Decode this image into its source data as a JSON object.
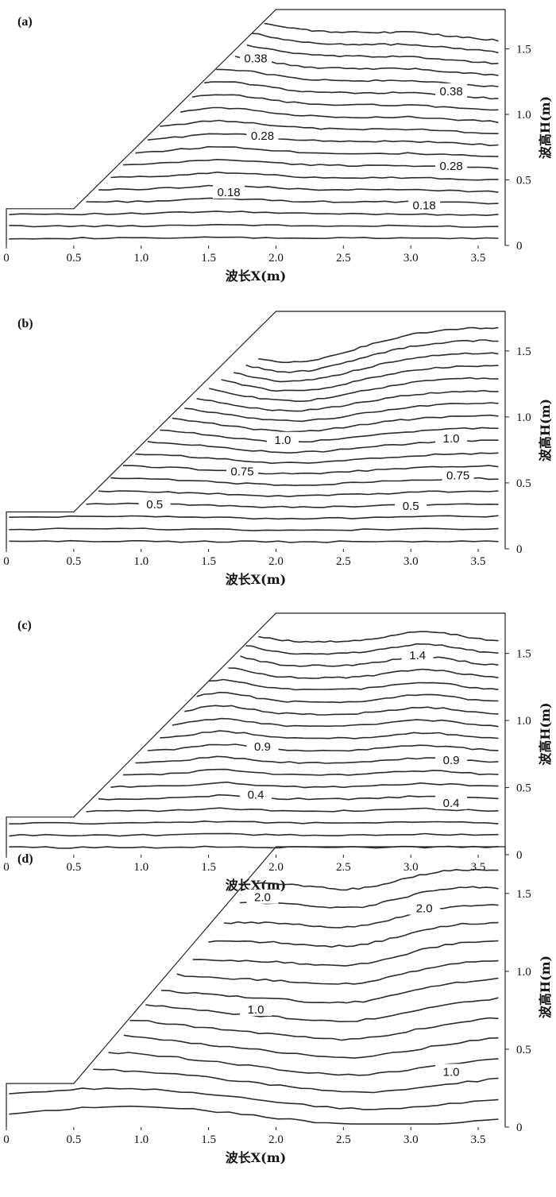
{
  "chart_data": [
    {
      "type": "contour",
      "panel": "(a)",
      "xlabel": "波长X(m)",
      "ylabel": "波高H(m)",
      "xlim": [
        0,
        3.7
      ],
      "ylim": [
        0,
        1.8
      ],
      "xticks": [
        "0",
        "0.5",
        "1.0",
        "1.5",
        "2.0",
        "2.5",
        "3.0",
        "3.5"
      ],
      "yticks": [
        "0",
        "0.5",
        "1.0",
        "1.5"
      ],
      "contour_labels": [
        {
          "text": "0.38",
          "x": 1.85,
          "y": 1.42
        },
        {
          "text": "0.38",
          "x": 3.3,
          "y": 1.17
        },
        {
          "text": "0.28",
          "x": 1.9,
          "y": 0.83
        },
        {
          "text": "0.28",
          "x": 3.3,
          "y": 0.6
        },
        {
          "text": "0.18",
          "x": 1.65,
          "y": 0.4
        },
        {
          "text": "0.18",
          "x": 3.1,
          "y": 0.3
        }
      ]
    },
    {
      "type": "contour",
      "panel": "(b)",
      "xlabel": "波长X(m)",
      "ylabel": "波高H(m)",
      "xlim": [
        0,
        3.7
      ],
      "ylim": [
        0,
        1.8
      ],
      "xticks": [
        "0",
        "0.5",
        "1.0",
        "1.5",
        "2.0",
        "2.5",
        "3.0",
        "3.5"
      ],
      "yticks": [
        "0",
        "0.5",
        "1.0",
        "1.5"
      ],
      "contour_labels": [
        {
          "text": "1.0",
          "x": 2.05,
          "y": 0.82
        },
        {
          "text": "1.0",
          "x": 3.3,
          "y": 0.83
        },
        {
          "text": "0.75",
          "x": 1.75,
          "y": 0.58
        },
        {
          "text": "0.75",
          "x": 3.35,
          "y": 0.55
        },
        {
          "text": "0.5",
          "x": 1.1,
          "y": 0.33
        },
        {
          "text": "0.5",
          "x": 3.0,
          "y": 0.32
        }
      ]
    },
    {
      "type": "contour",
      "panel": "(c)",
      "xlabel": "波长X(m)",
      "ylabel": "波高H(m)",
      "xlim": [
        0,
        3.7
      ],
      "ylim": [
        0,
        1.8
      ],
      "xticks": [
        "0",
        "0.5",
        "1.0",
        "1.5",
        "2.0",
        "2.5",
        "3.0",
        "3.5"
      ],
      "yticks": [
        "0",
        "0.5",
        "1.0",
        "1.5"
      ],
      "contour_labels": [
        {
          "text": "1.4",
          "x": 3.05,
          "y": 1.48
        },
        {
          "text": "0.9",
          "x": 1.9,
          "y": 0.8
        },
        {
          "text": "0.9",
          "x": 3.3,
          "y": 0.7
        },
        {
          "text": "0.4",
          "x": 1.85,
          "y": 0.44
        },
        {
          "text": "0.4",
          "x": 3.3,
          "y": 0.38
        }
      ]
    },
    {
      "type": "contour",
      "panel": "(d)",
      "xlabel": "波长X(m)",
      "ylabel": "波高H(m)",
      "xlim": [
        0,
        3.7
      ],
      "ylim": [
        0,
        1.8
      ],
      "xticks": [
        "0",
        "0.5",
        "1.0",
        "1.5",
        "2.0",
        "2.5",
        "3.0",
        "3.5"
      ],
      "yticks": [
        "0",
        "0.5",
        "1.0",
        "1.5"
      ],
      "contour_labels": [
        {
          "text": "2.0",
          "x": 1.9,
          "y": 1.47
        },
        {
          "text": "2.0",
          "x": 3.1,
          "y": 1.4
        },
        {
          "text": "1.0",
          "x": 1.85,
          "y": 0.75
        },
        {
          "text": "1.0",
          "x": 3.3,
          "y": 0.35
        }
      ]
    }
  ]
}
